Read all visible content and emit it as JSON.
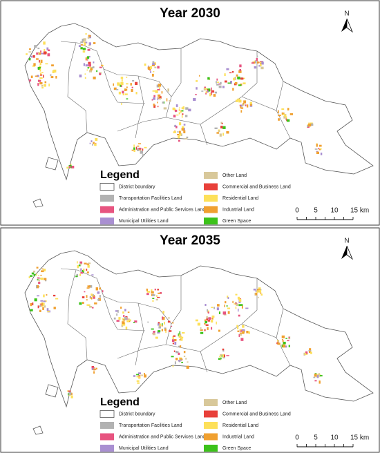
{
  "panels": [
    {
      "title": "Year 2030",
      "north": "N",
      "legend": {
        "title": "Legend",
        "items": [
          {
            "label": "District boundary",
            "color": "#ffffff"
          },
          {
            "label": "Transportation Facilities Land",
            "color": "#b2b2b2"
          },
          {
            "label": "Administration and Public Services Land",
            "color": "#e75480"
          },
          {
            "label": "Municipal Utilities Land",
            "color": "#a98fd1"
          },
          {
            "label": "Other Land",
            "color": "#d8c89a"
          },
          {
            "label": "Commercial and Business Land",
            "color": "#e8403a"
          },
          {
            "label": "Residential Land",
            "color": "#fde05a"
          },
          {
            "label": "Industrial Land",
            "color": "#f0a030"
          },
          {
            "label": "Green Space",
            "color": "#3cc21a"
          }
        ]
      },
      "scale_bar": {
        "labels": [
          "0",
          "5",
          "10",
          "15 km"
        ]
      }
    },
    {
      "title": "Year 2035",
      "north": "N",
      "legend": {
        "title": "Legend",
        "items": [
          {
            "label": "District boundary",
            "color": "#ffffff"
          },
          {
            "label": "Transportation Facilities Land",
            "color": "#b2b2b2"
          },
          {
            "label": "Administration and Public Services Land",
            "color": "#e75480"
          },
          {
            "label": "Municipal Utilities Land",
            "color": "#a98fd1"
          },
          {
            "label": "Other Land",
            "color": "#d8c89a"
          },
          {
            "label": "Commercial and Business Land",
            "color": "#e8403a"
          },
          {
            "label": "Residential Land",
            "color": "#fde05a"
          },
          {
            "label": "Industrial Land",
            "color": "#f0a030"
          },
          {
            "label": "Green Space",
            "color": "#3cc21a"
          }
        ]
      },
      "scale_bar": {
        "labels": [
          "0",
          "5",
          "10",
          "15 km"
        ]
      }
    }
  ]
}
